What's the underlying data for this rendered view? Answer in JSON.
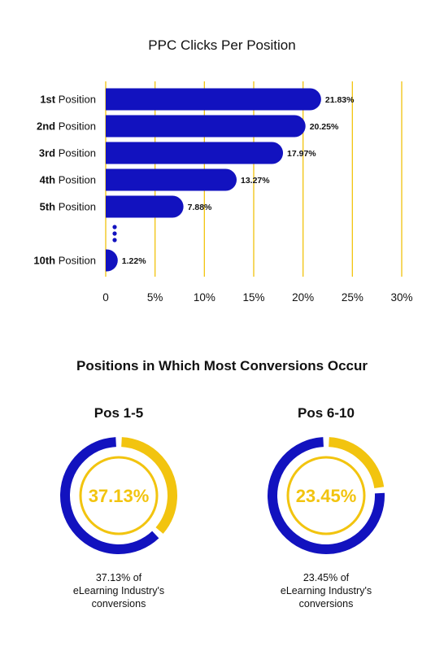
{
  "colors": {
    "bar": "#1212BF",
    "accent": "#F2C40F",
    "grid": "#F2C40F",
    "text": "#111111"
  },
  "chart_data": [
    {
      "type": "bar",
      "orientation": "horizontal",
      "title": "PPC Clicks Per Position",
      "categories": [
        {
          "ordinal": "1st",
          "suffix": " Position"
        },
        {
          "ordinal": "2nd",
          "suffix": " Position"
        },
        {
          "ordinal": "3rd",
          "suffix": " Position"
        },
        {
          "ordinal": "4th",
          "suffix": " Position"
        },
        {
          "ordinal": "5th",
          "suffix": " Position"
        },
        {
          "ordinal": "10th",
          "suffix": " Position"
        }
      ],
      "values": [
        21.83,
        20.25,
        17.97,
        13.27,
        7.88,
        1.22
      ],
      "value_labels": [
        "21.83%",
        "20.25%",
        "17.97%",
        "13.27%",
        "7.88%",
        "1.22%"
      ],
      "gap_after_index": 4,
      "xlim": [
        0,
        30
      ],
      "xticks": [
        0,
        5,
        10,
        15,
        20,
        25,
        30
      ],
      "xtick_labels": [
        "0",
        "5%",
        "10%",
        "15%",
        "20%",
        "25%",
        "30%"
      ],
      "grid": true
    },
    {
      "type": "pie",
      "title": "Positions in Which Most Conversions Occur",
      "donuts": [
        {
          "heading": "Pos 1-5",
          "value": 37.13,
          "center_label": "37.13%",
          "caption": [
            "37.13% of",
            "eLearning Industry's",
            "conversions"
          ]
        },
        {
          "heading": "Pos 6-10",
          "value": 23.45,
          "center_label": "23.45%",
          "caption": [
            "23.45% of",
            "eLearning Industry's",
            "conversions"
          ]
        }
      ]
    }
  ]
}
